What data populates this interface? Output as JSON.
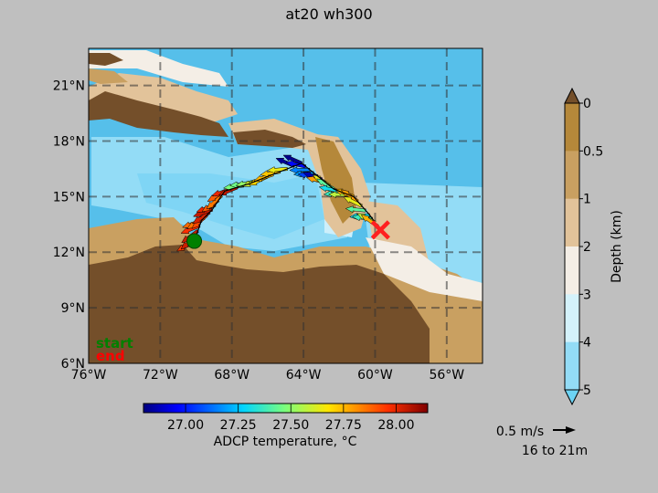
{
  "chart_data": {
    "type": "map",
    "title": "at20 wh300",
    "map": {
      "lon_range": [
        -76,
        -54
      ],
      "lat_range": [
        6,
        23
      ],
      "x_ticks": [
        "76°W",
        "72°W",
        "68°W",
        "64°W",
        "60°W",
        "56°W"
      ],
      "x_tick_values": [
        -76,
        -72,
        -68,
        -64,
        -60,
        -56
      ],
      "y_ticks": [
        "6°N",
        "9°N",
        "12°N",
        "15°N",
        "18°N",
        "21°N"
      ],
      "y_tick_values": [
        6,
        9,
        12,
        15,
        18,
        21
      ],
      "grid": true,
      "start_label": "start",
      "end_label": "end",
      "start_color": "#008000",
      "end_color": "#ff0000",
      "start_point": [
        -70.1,
        12.6
      ],
      "end_point": [
        -59.7,
        13.2
      ],
      "track": [
        [
          -70.1,
          12.6
        ],
        [
          -69.7,
          13.7
        ],
        [
          -69.1,
          14.3
        ],
        [
          -68.4,
          15.3
        ],
        [
          -67.0,
          15.7
        ],
        [
          -65.7,
          16.2
        ],
        [
          -64.1,
          16.8
        ],
        [
          -63.2,
          16.1
        ],
        [
          -62.3,
          15.4
        ],
        [
          -61.2,
          15.0
        ],
        [
          -60.3,
          14.0
        ],
        [
          -59.7,
          13.2
        ]
      ]
    },
    "depth_colorbar": {
      "label": "Depth (km)",
      "ticks": [
        "0",
        "0.5",
        "1",
        "2",
        "3",
        "4",
        "5"
      ],
      "colors": [
        "#b5883a",
        "#c9a061",
        "#e2c39a",
        "#f4eee6",
        "#d4f2fb",
        "#93dcf6",
        "#6cd3f4"
      ],
      "extend": "both"
    },
    "temperature_colorbar": {
      "label": "ADCP temperature, °C",
      "ticks": [
        "27.00",
        "27.25",
        "27.50",
        "27.75",
        "28.00"
      ],
      "range": [
        26.8,
        28.15
      ],
      "tick_values": [
        27.0,
        27.25,
        27.5,
        27.75,
        28.0
      ]
    },
    "quiver_key": {
      "speed_label": "0.5 m/s",
      "depth_label": "16 to 21m"
    }
  }
}
